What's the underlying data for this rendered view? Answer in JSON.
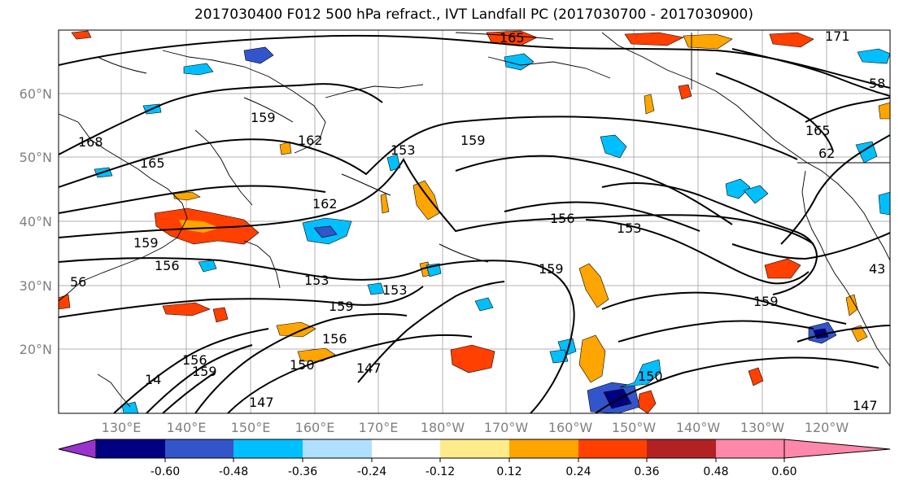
{
  "title": "2017030400 F012 500 hPa refract., IVT Landfall PC (2017030700 - 2017030900)",
  "map": {
    "lat_labels": [
      "60°N",
      "50°N",
      "40°N",
      "30°N",
      "20°N"
    ],
    "lon_labels": [
      "130°E",
      "140°E",
      "150°E",
      "160°E",
      "170°E",
      "180°W",
      "170°W",
      "160°W",
      "150°W",
      "140°W",
      "130°W",
      "120°W"
    ],
    "contour_labels": [
      "165",
      "171",
      "58",
      "159",
      "162",
      "153",
      "159",
      "165",
      "62",
      "168",
      "165",
      "162",
      "156",
      "153",
      "159",
      "156",
      "159",
      "56",
      "153",
      "153",
      "159",
      "159",
      "156",
      "159",
      "147",
      "150",
      "156",
      "150",
      "147",
      "147",
      "14",
      "43"
    ]
  },
  "colorbar": {
    "colors": [
      "#9933cc",
      "#000080",
      "#3355cc",
      "#00bfff",
      "#b0e0ff",
      "#ffffff",
      "#ffeb8a",
      "#ffa500",
      "#ff4000",
      "#b22222",
      "#ff88aa"
    ],
    "tick_labels": [
      "-0.60",
      "-0.48",
      "-0.36",
      "-0.24",
      "-0.12",
      "0.12",
      "0.24",
      "0.36",
      "0.48",
      "0.60"
    ]
  }
}
